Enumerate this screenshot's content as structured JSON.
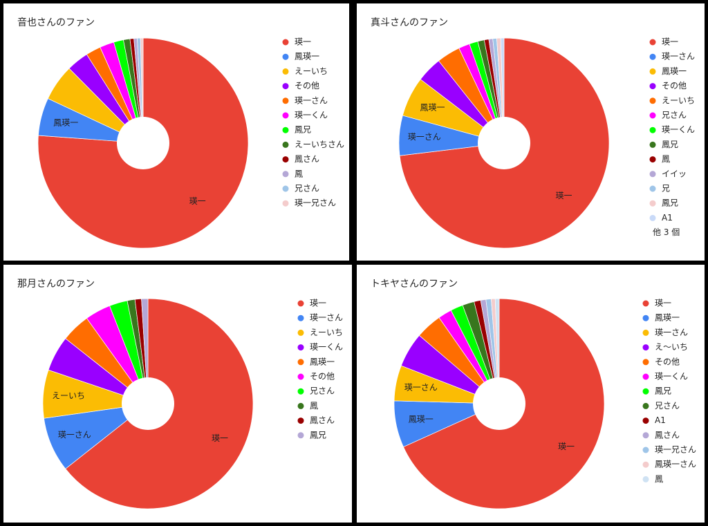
{
  "chart_data": [
    {
      "type": "pie",
      "title": "音也さんのファン",
      "categories": [
        "瑛一",
        "鳳瑛一",
        "えーいち",
        "その他",
        "瑛一さん",
        "瑛一くん",
        "鳳兄",
        "えーいちさん",
        "鳳さん",
        "鳳",
        "兄さん",
        "瑛一兄さん"
      ],
      "values": [
        76,
        5.8,
        5.6,
        3.4,
        2.3,
        2.2,
        1.5,
        1,
        0.6,
        0.5,
        0.5,
        0.4
      ],
      "data_labels": [
        "瑛一",
        "鳳瑛一",
        null,
        null,
        null,
        null,
        null,
        null,
        null,
        null,
        null,
        null
      ],
      "colors": [
        "#e94235",
        "#4285f4",
        "#fbbc04",
        "#9900ff",
        "#ff6d01",
        "#ff00ff",
        "#00ff00",
        "#38761d",
        "#990000",
        "#b4a7d6",
        "#9fc5e8",
        "#f4cccc"
      ]
    },
    {
      "type": "pie",
      "title": "真斗さんのファン",
      "categories": [
        "瑛一",
        "瑛一さん",
        "鳳瑛一",
        "その他",
        "えーいち",
        "兄さん",
        "瑛一くん",
        "鳳兄",
        "鳳",
        "イイッ",
        "兄",
        "鳳兄",
        "A1"
      ],
      "values": [
        72.5,
        6.1,
        6.1,
        3.9,
        3.6,
        1.7,
        1.3,
        1,
        0.7,
        0.6,
        0.6,
        0.6,
        0.5
      ],
      "data_labels": [
        "瑛一",
        "瑛一さん",
        "鳳瑛一",
        null,
        null,
        null,
        null,
        null,
        null,
        null,
        null,
        null,
        null
      ],
      "colors": [
        "#e94235",
        "#4285f4",
        "#fbbc04",
        "#9900ff",
        "#ff6d01",
        "#ff00ff",
        "#00ff00",
        "#38761d",
        "#990000",
        "#b4a7d6",
        "#9fc5e8",
        "#f4cccc",
        "#c9daf8"
      ],
      "legend_more": "他 3 個"
    },
    {
      "type": "pie",
      "title": "那月さんのファン",
      "categories": [
        "瑛一",
        "瑛一さん",
        "えーいち",
        "瑛一くん",
        "鳳瑛一",
        "その他",
        "兄さん",
        "鳳",
        "鳳さん",
        "鳳兄"
      ],
      "values": [
        65,
        8.5,
        7.5,
        5.5,
        4.5,
        4,
        2.8,
        1.2,
        1,
        1
      ],
      "data_labels": [
        "瑛一",
        "瑛一さん",
        "えーいち",
        null,
        null,
        null,
        null,
        null,
        null,
        null
      ],
      "colors": [
        "#e94235",
        "#4285f4",
        "#fbbc04",
        "#9900ff",
        "#ff6d01",
        "#ff00ff",
        "#00ff00",
        "#38761d",
        "#990000",
        "#b4a7d6"
      ]
    },
    {
      "type": "pie",
      "title": "トキヤさんのファン",
      "categories": [
        "瑛一",
        "鳳瑛一",
        "瑛一さん",
        "え～いち",
        "その他",
        "瑛一くん",
        "鳳兄",
        "兄さん",
        "A1",
        "鳳さん",
        "瑛一兄さん",
        "鳳瑛一さん",
        "鳳"
      ],
      "values": [
        67.5,
        7.1,
        5.4,
        5.3,
        4,
        2.1,
        1.9,
        1.8,
        1,
        0.8,
        0.8,
        0.6,
        0.6
      ],
      "data_labels": [
        "瑛一",
        "鳳瑛一",
        "瑛一さん",
        null,
        null,
        null,
        null,
        null,
        null,
        null,
        null,
        null,
        null
      ],
      "colors": [
        "#e94235",
        "#4285f4",
        "#fbbc04",
        "#9900ff",
        "#ff6d01",
        "#ff00ff",
        "#00ff00",
        "#38761d",
        "#990000",
        "#b4a7d6",
        "#9fc5e8",
        "#f4cccc",
        "#cfe2f3"
      ]
    }
  ]
}
